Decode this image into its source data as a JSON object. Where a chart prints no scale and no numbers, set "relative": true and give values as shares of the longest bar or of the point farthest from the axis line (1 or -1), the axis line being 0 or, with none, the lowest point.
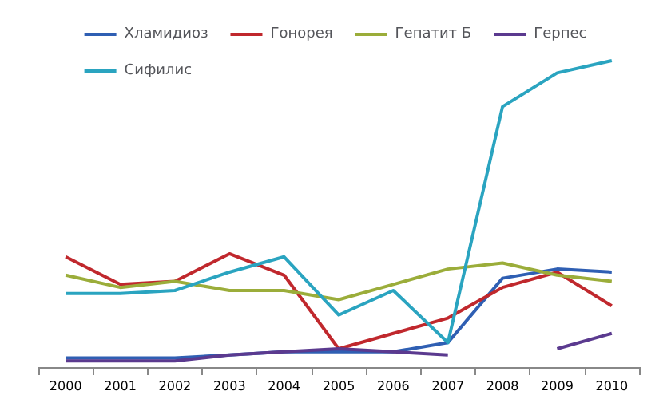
{
  "chart_data": {
    "type": "line",
    "relative": true,
    "legend": "top",
    "grid": false,
    "marker": "none",
    "line_style": "solid",
    "categories": [
      "2000",
      "2001",
      "2002",
      "2003",
      "2004",
      "2005",
      "2006",
      "2007",
      "2008",
      "2009",
      "2010"
    ],
    "series": [
      {
        "name": "Хламидиоз",
        "color": "#2f5fb3",
        "values": [
          0.03,
          0.03,
          0.03,
          0.04,
          0.05,
          0.05,
          0.05,
          0.08,
          0.29,
          0.32,
          0.31
        ]
      },
      {
        "name": "Гонорея",
        "color": "#c0282d",
        "values": [
          0.36,
          0.27,
          0.28,
          0.37,
          0.3,
          0.06,
          0.11,
          0.16,
          0.26,
          0.31,
          0.2
        ]
      },
      {
        "name": "Гепатит Б",
        "color": "#9bad3a",
        "values": [
          0.3,
          0.26,
          0.28,
          0.25,
          0.25,
          0.22,
          0.27,
          0.32,
          0.34,
          0.3,
          0.28
        ]
      },
      {
        "name": "Герпес",
        "color": "#5b3a8f",
        "values": [
          0.02,
          0.02,
          0.02,
          0.04,
          0.05,
          0.06,
          0.05,
          0.04,
          null,
          0.06,
          0.11
        ]
      },
      {
        "name": "Сифилис",
        "color": "#2aa4c0",
        "values": [
          0.24,
          0.24,
          0.25,
          0.31,
          0.36,
          0.17,
          0.25,
          0.08,
          0.85,
          0.96,
          1
        ]
      }
    ]
  }
}
